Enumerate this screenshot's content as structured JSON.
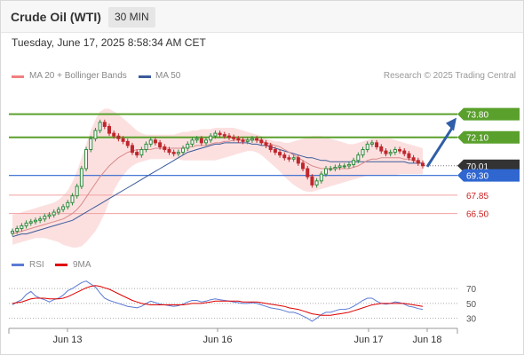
{
  "header": {
    "title": "Crude Oil (WTI)",
    "timeframe": "30 MIN",
    "datetime": "Tuesday, June 17, 2025 8:58:34 AM CET"
  },
  "legend": {
    "bollinger_label": "MA 20 + Bollinger Bands",
    "ma50_label": "MA 50",
    "bollinger_color": "#f08080",
    "ma50_color": "#3a5a9a",
    "research": "Research © 2025 Trading Central"
  },
  "sub_legend": {
    "rsi_label": "RSI",
    "rsi_color": "#5b7bd5",
    "ma9_label": "9MA",
    "ma9_color": "#e00000"
  },
  "chart_data": [
    {
      "type": "candlestick",
      "x_ticks": [
        "Jun 13",
        "Jun 16",
        "Jun 17",
        "Jun 18"
      ],
      "y_range": [
        63.8,
        75.8
      ],
      "levels": [
        {
          "label": "73.80",
          "value": 73.8,
          "kind": "resistance",
          "color": "#5aa02c"
        },
        {
          "label": "72.10",
          "value": 72.1,
          "kind": "resistance",
          "color": "#5aa02c"
        },
        {
          "label": "70.01",
          "value": 70.01,
          "kind": "last",
          "color": "#333333"
        },
        {
          "label": "69.30",
          "value": 69.3,
          "kind": "pivot",
          "color": "#2f66d0"
        },
        {
          "label": "67.85",
          "value": 67.85,
          "kind": "support",
          "color": "#cc2222"
        },
        {
          "label": "66.50",
          "value": 66.5,
          "kind": "support",
          "color": "#cc2222"
        }
      ],
      "price": [
        65.2,
        65.4,
        65.6,
        65.8,
        65.9,
        66.0,
        66.1,
        66.3,
        66.4,
        66.6,
        66.8,
        67.0,
        67.3,
        67.8,
        68.5,
        69.8,
        71.2,
        72.0,
        72.6,
        73.2,
        72.9,
        72.4,
        72.2,
        72.0,
        71.8,
        71.5,
        71.0,
        70.8,
        71.2,
        71.6,
        71.9,
        71.7,
        71.4,
        71.2,
        71.0,
        70.9,
        71.0,
        71.3,
        71.6,
        71.9,
        72.0,
        71.7,
        71.9,
        72.2,
        72.4,
        72.3,
        72.2,
        72.1,
        72.0,
        71.9,
        71.8,
        71.9,
        72.0,
        71.9,
        71.7,
        71.5,
        71.2,
        71.0,
        70.8,
        70.6,
        70.5,
        70.6,
        70.2,
        69.8,
        69.2,
        68.6,
        68.9,
        69.4,
        69.8,
        69.8,
        69.9,
        70.0,
        70.0,
        70.1,
        70.4,
        70.8,
        71.2,
        71.6,
        71.7,
        71.4,
        71.1,
        70.9,
        71.0,
        71.2,
        71.1,
        70.9,
        70.6,
        70.4,
        70.2,
        70.01
      ],
      "ma20": [
        65.0,
        65.1,
        65.2,
        65.3,
        65.4,
        65.5,
        65.6,
        65.7,
        65.8,
        65.9,
        66.0,
        66.1,
        66.3,
        66.5,
        66.8,
        67.2,
        67.7,
        68.2,
        68.7,
        69.2,
        69.6,
        70.0,
        70.3,
        70.6,
        70.8,
        71.0,
        71.1,
        71.2,
        71.2,
        71.2,
        71.2,
        71.3,
        71.3,
        71.3,
        71.3,
        71.3,
        71.3,
        71.3,
        71.4,
        71.4,
        71.5,
        71.5,
        71.5,
        71.6,
        71.7,
        71.7,
        71.8,
        71.8,
        71.9,
        71.9,
        71.9,
        71.9,
        71.9,
        71.9,
        71.8,
        71.7,
        71.6,
        71.5,
        71.4,
        71.2,
        71.0,
        70.8,
        70.6,
        70.4,
        70.2,
        70.0,
        69.9,
        69.8,
        69.8,
        69.8,
        69.8,
        69.8,
        69.8,
        69.8,
        69.9,
        70.0,
        70.2,
        70.4,
        70.5,
        70.5,
        70.6,
        70.6,
        70.6,
        70.6,
        70.6,
        70.5,
        70.5,
        70.4,
        70.3,
        70.2
      ],
      "bb_upper": [
        66.4,
        66.5,
        66.6,
        66.7,
        66.8,
        66.9,
        67.0,
        67.1,
        67.2,
        67.3,
        67.5,
        67.8,
        68.2,
        68.8,
        69.6,
        70.6,
        71.6,
        72.6,
        73.4,
        74.0,
        74.2,
        74.2,
        74.0,
        73.8,
        73.5,
        73.2,
        72.9,
        72.6,
        72.4,
        72.3,
        72.3,
        72.3,
        72.3,
        72.3,
        72.3,
        72.3,
        72.4,
        72.5,
        72.5,
        72.6,
        72.6,
        72.7,
        72.7,
        72.7,
        72.8,
        72.8,
        72.8,
        72.8,
        72.8,
        72.7,
        72.6,
        72.5,
        72.4,
        72.3,
        72.2,
        72.0,
        71.9,
        71.8,
        71.8,
        71.7,
        71.7,
        71.8,
        71.9,
        72.0,
        72.1,
        72.2,
        72.2,
        72.2,
        72.1,
        72.0,
        71.9,
        71.8,
        71.7,
        71.6,
        71.6,
        71.7,
        71.8,
        71.9,
        72.0,
        72.0,
        72.0,
        72.0,
        72.0,
        71.9,
        71.8,
        71.7,
        71.6,
        71.5,
        71.4,
        71.3
      ],
      "bb_lower": [
        64.2,
        64.3,
        64.4,
        64.5,
        64.6,
        64.7,
        64.7,
        64.7,
        64.6,
        64.5,
        64.4,
        64.2,
        64.1,
        64.0,
        64.0,
        64.1,
        64.4,
        64.8,
        65.2,
        65.8,
        66.5,
        67.4,
        68.2,
        68.8,
        69.3,
        69.7,
        70.0,
        70.2,
        70.3,
        70.4,
        70.5,
        70.5,
        70.5,
        70.5,
        70.5,
        70.5,
        70.5,
        70.4,
        70.4,
        70.4,
        70.4,
        70.4,
        70.4,
        70.4,
        70.4,
        70.5,
        70.6,
        70.7,
        70.8,
        70.9,
        71.0,
        71.1,
        71.1,
        71.0,
        70.8,
        70.5,
        70.2,
        69.9,
        69.6,
        69.2,
        68.9,
        68.6,
        68.4,
        68.2,
        68.1,
        68.1,
        68.2,
        68.3,
        68.4,
        68.5,
        68.6,
        68.7,
        68.8,
        68.9,
        69.0,
        69.1,
        69.2,
        69.3,
        69.3,
        69.3,
        69.3,
        69.3,
        69.3,
        69.3,
        69.4,
        69.4,
        69.4,
        69.4,
        69.4,
        69.4
      ],
      "ma50": [
        64.8,
        64.9,
        65.0,
        65.0,
        65.1,
        65.2,
        65.3,
        65.4,
        65.5,
        65.6,
        65.7,
        65.8,
        65.9,
        66.0,
        66.2,
        66.4,
        66.6,
        66.8,
        67.0,
        67.2,
        67.4,
        67.6,
        67.8,
        68.0,
        68.2,
        68.4,
        68.6,
        68.8,
        69.0,
        69.2,
        69.4,
        69.6,
        69.8,
        70.0,
        70.2,
        70.4,
        70.6,
        70.8,
        71.0,
        71.1,
        71.2,
        71.3,
        71.4,
        71.5,
        71.6,
        71.6,
        71.7,
        71.7,
        71.7,
        71.7,
        71.7,
        71.7,
        71.6,
        71.6,
        71.5,
        71.5,
        71.4,
        71.3,
        71.2,
        71.1,
        71.0,
        70.9,
        70.8,
        70.7,
        70.6,
        70.6,
        70.5,
        70.4,
        70.4,
        70.3,
        70.3,
        70.3,
        70.3,
        70.3,
        70.3,
        70.3,
        70.3,
        70.3,
        70.3,
        70.3,
        70.3,
        70.3,
        70.3,
        70.3,
        70.3,
        70.3,
        70.2,
        70.2,
        70.2,
        70.2
      ],
      "projection": {
        "from": 70.01,
        "to": 73.8
      }
    },
    {
      "type": "line",
      "title": "RSI",
      "y_ticks": [
        70,
        50,
        30
      ],
      "y_range": [
        20,
        88
      ],
      "series": [
        {
          "name": "RSI",
          "values": [
            48,
            52,
            55,
            62,
            66,
            60,
            57,
            55,
            52,
            55,
            57,
            61,
            67,
            70,
            74,
            78,
            80,
            76,
            72,
            64,
            57,
            54,
            52,
            50,
            48,
            46,
            45,
            44,
            46,
            50,
            53,
            51,
            49,
            48,
            47,
            46,
            47,
            49,
            52,
            54,
            54,
            52,
            53,
            55,
            56,
            55,
            54,
            53,
            52,
            51,
            50,
            50,
            51,
            50,
            48,
            46,
            44,
            43,
            42,
            40,
            38,
            38,
            36,
            33,
            30,
            26,
            30,
            35,
            38,
            38,
            40,
            42,
            42,
            43,
            46,
            50,
            54,
            57,
            57,
            53,
            50,
            49,
            50,
            52,
            51,
            49,
            46,
            45,
            43,
            42
          ]
        },
        {
          "name": "9MA",
          "values": [
            50,
            51,
            52,
            54,
            56,
            57,
            57,
            57,
            56,
            56,
            56,
            57,
            59,
            62,
            65,
            68,
            71,
            73,
            74,
            73,
            71,
            69,
            66,
            63,
            60,
            57,
            54,
            52,
            50,
            49,
            48,
            48,
            48,
            48,
            48,
            48,
            48,
            48,
            49,
            50,
            50,
            50,
            51,
            52,
            53,
            53,
            53,
            53,
            53,
            53,
            52,
            52,
            52,
            52,
            51,
            50,
            49,
            48,
            47,
            46,
            44,
            43,
            42,
            40,
            38,
            36,
            35,
            34,
            34,
            34,
            35,
            36,
            37,
            38,
            40,
            42,
            44,
            46,
            48,
            49,
            50,
            50,
            50,
            50,
            50,
            50,
            49,
            48,
            47,
            46
          ]
        }
      ]
    }
  ]
}
